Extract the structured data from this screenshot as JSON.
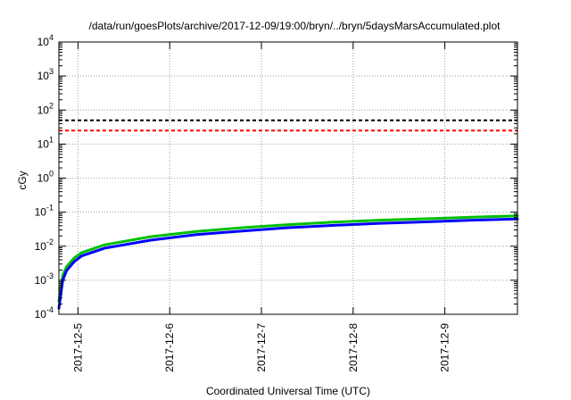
{
  "chart_data": {
    "type": "line",
    "title": "/data/run/goesPlots/archive/2017-12-09/19:00/bryn/../bryn/5daysMarsAccumulated.plot",
    "xlabel": "Coordinated Universal Time (UTC)",
    "ylabel": "cGy",
    "y_scale": "log",
    "ylim": [
      0.0001,
      10000
    ],
    "xlim": [
      "2017-12-04 19:00",
      "2017-12-09 19:00"
    ],
    "x_ticks": [
      "2017-12-5",
      "2017-12-6",
      "2017-12-7",
      "2017-12-8",
      "2017-12-9"
    ],
    "y_ticks": [
      {
        "mantissa": "10",
        "exp": "-4"
      },
      {
        "mantissa": "10",
        "exp": "-3"
      },
      {
        "mantissa": "10",
        "exp": "-2"
      },
      {
        "mantissa": "10",
        "exp": "-1"
      },
      {
        "mantissa": "10",
        "exp": "0"
      },
      {
        "mantissa": "10",
        "exp": "1"
      },
      {
        "mantissa": "10",
        "exp": "2"
      },
      {
        "mantissa": "10",
        "exp": "3"
      },
      {
        "mantissa": "10",
        "exp": "4"
      }
    ],
    "grid": true,
    "reference_lines": [
      {
        "y": 50,
        "color": "#000000",
        "style": "dashed"
      },
      {
        "y": 25,
        "color": "#ff0000",
        "style": "dashed"
      }
    ],
    "series": [
      {
        "color": "#00c000",
        "x": [
          "2017-12-04 19:00",
          "2017-12-04 20:00",
          "2017-12-04 21:00",
          "2017-12-04 23:00",
          "2017-12-05 01:00",
          "2017-12-05 07:00",
          "2017-12-05 19:00",
          "2017-12-06 07:00",
          "2017-12-06 19:00",
          "2017-12-07 07:00",
          "2017-12-07 19:00",
          "2017-12-08 07:00",
          "2017-12-08 19:00",
          "2017-12-09 07:00",
          "2017-12-09 19:00"
        ],
        "values": [
          0.00024,
          0.0014,
          0.0025,
          0.0045,
          0.0065,
          0.011,
          0.019,
          0.027,
          0.035,
          0.043,
          0.051,
          0.058,
          0.064,
          0.071,
          0.078
        ]
      },
      {
        "color": "#0000ff",
        "x": [
          "2017-12-04 19:00",
          "2017-12-04 20:00",
          "2017-12-04 21:00",
          "2017-12-04 23:00",
          "2017-12-05 01:00",
          "2017-12-05 07:00",
          "2017-12-05 19:00",
          "2017-12-06 07:00",
          "2017-12-06 19:00",
          "2017-12-07 07:00",
          "2017-12-07 19:00",
          "2017-12-08 07:00",
          "2017-12-08 19:00",
          "2017-12-09 07:00",
          "2017-12-09 19:00"
        ],
        "values": [
          0.00015,
          0.001,
          0.0019,
          0.0035,
          0.0052,
          0.0088,
          0.015,
          0.022,
          0.028,
          0.035,
          0.041,
          0.047,
          0.052,
          0.058,
          0.063
        ]
      }
    ],
    "colors": {
      "grid": "#a0a0a0",
      "frame": "#000000"
    }
  }
}
